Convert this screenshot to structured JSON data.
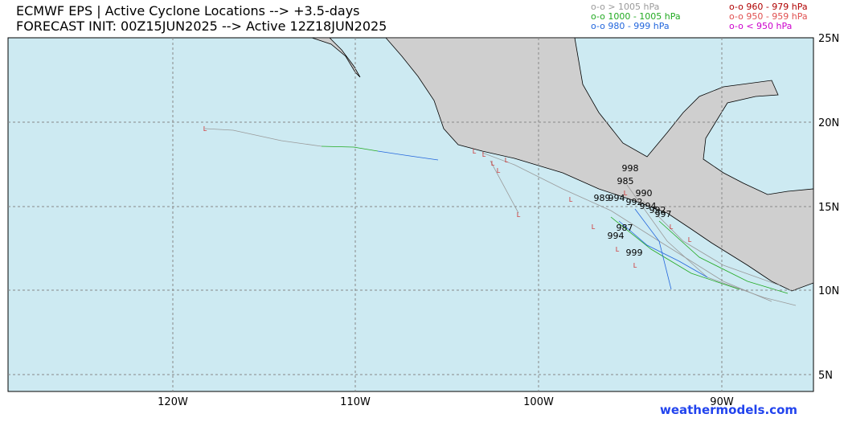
{
  "header": {
    "title": "ECMWF EPS | Active Cyclone Locations --> +3.5-days",
    "subtitle": "FORECAST INIT: 00Z15JUN2025 --> Active 12Z18JUN2025"
  },
  "legend": [
    {
      "label": "o-o > 1005 hPa",
      "color": "#9a9a9a"
    },
    {
      "label": "o-o 960 - 979 hPa",
      "color": "#b00000"
    },
    {
      "label": "o-o 1000 - 1005 hPa",
      "color": "#22aa22"
    },
    {
      "label": "o-o 950 - 959 hPa",
      "color": "#e05050"
    },
    {
      "label": "o-o 980 - 999 hPa",
      "color": "#2266dd"
    },
    {
      "label": "o-o < 950 hPa",
      "color": "#cc00cc"
    }
  ],
  "map": {
    "lon_labels": [
      "120W",
      "110W",
      "100W",
      "90W"
    ],
    "lat_labels": [
      "25N",
      "20N",
      "15N",
      "10N",
      "5N"
    ],
    "storm_marker": "L",
    "pressure_labels": [
      "998",
      "985",
      "990",
      "989",
      "994",
      "992",
      "994",
      "992",
      "997",
      "987",
      "994",
      "999"
    ]
  },
  "footer": {
    "credit": "weathermodels.com"
  }
}
